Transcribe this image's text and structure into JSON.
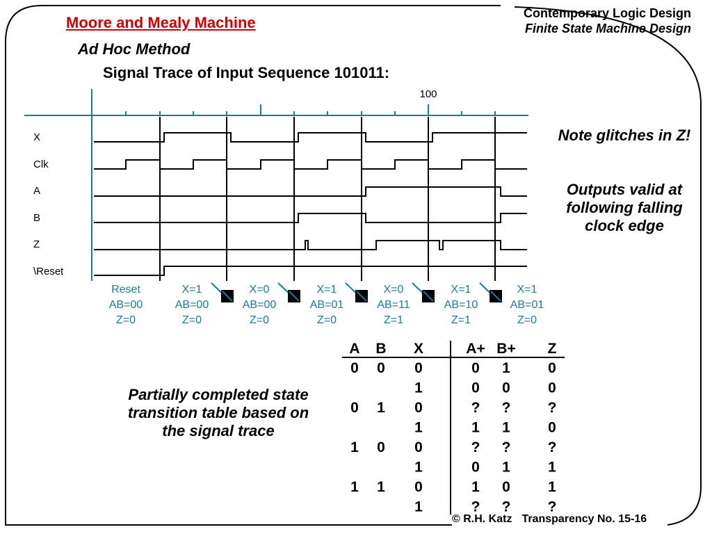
{
  "slide": {
    "title": "Moore and Mealy Machine",
    "header_line1": "Contemporary Logic Design",
    "header_line2": "Finite State Machine Design",
    "subtitle": "Ad Hoc Method",
    "trace_title": "Signal Trace of Input Sequence 101011:",
    "timescale_label": "100",
    "footer_copyright": "© R.H. Katz",
    "footer_page": "Transparency No. 15-16"
  },
  "signals": [
    "X",
    "Clk",
    "A",
    "B",
    "Z",
    "\\Reset"
  ],
  "state_labels": [
    [
      "Reset",
      "AB=00",
      "Z=0"
    ],
    [
      "X=1",
      "AB=00",
      "Z=0"
    ],
    [
      "X=0",
      "AB=00",
      "Z=0"
    ],
    [
      "X=1",
      "AB=01",
      "Z=0"
    ],
    [
      "X=0",
      "AB=11",
      "Z=1"
    ],
    [
      "X=1",
      "AB=10",
      "Z=1"
    ],
    [
      "X=1",
      "AB=01",
      "Z=0"
    ]
  ],
  "notes": {
    "glitch": "Note glitches in Z!",
    "valid": "Outputs valid at following falling clock edge",
    "table": "Partially completed state transition table based on the signal trace"
  },
  "table": {
    "headers": [
      "A",
      "B",
      "X",
      "A+",
      "B+",
      "Z"
    ],
    "rows": [
      [
        "0",
        "0",
        "0",
        "0",
        "1",
        "0"
      ],
      [
        "",
        "",
        "1",
        "0",
        "0",
        "0"
      ],
      [
        "0",
        "1",
        "0",
        "?",
        "?",
        "?"
      ],
      [
        "",
        "",
        "1",
        "1",
        "1",
        "0"
      ],
      [
        "1",
        "0",
        "0",
        "?",
        "?",
        "?"
      ],
      [
        "",
        "",
        "1",
        "0",
        "1",
        "1"
      ],
      [
        "1",
        "1",
        "0",
        "1",
        "0",
        "1"
      ],
      [
        "",
        "",
        "1",
        "?",
        "?",
        "?"
      ]
    ]
  },
  "colors": {
    "title": "#d10000",
    "state_text": "#1a7a9a",
    "arrow": "#1a7a9a"
  }
}
